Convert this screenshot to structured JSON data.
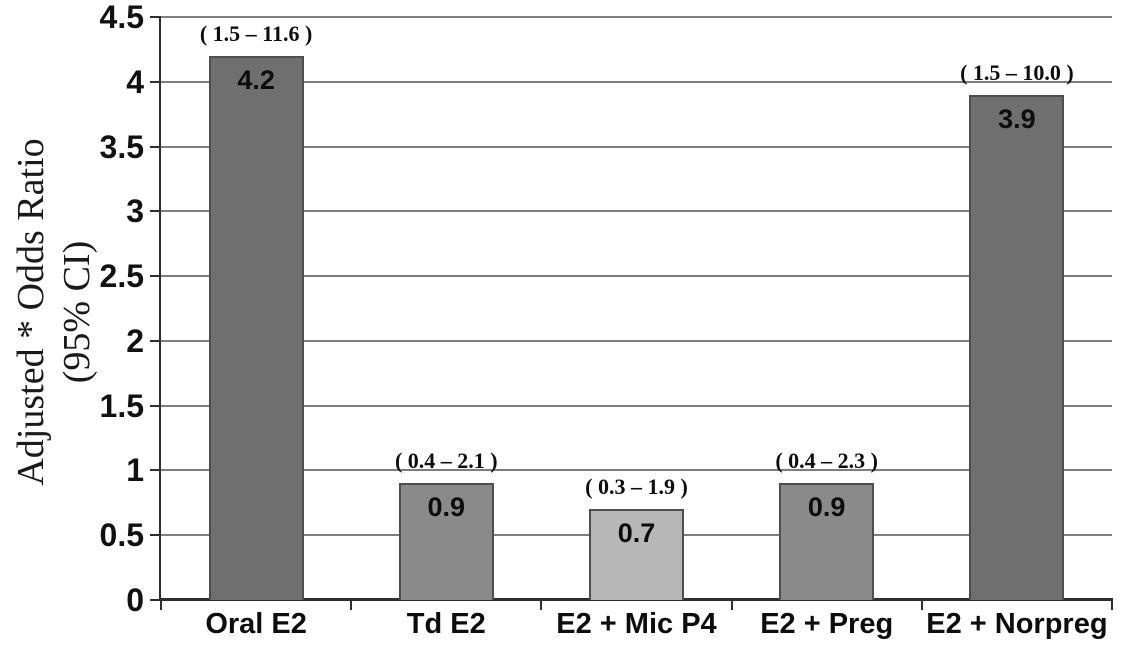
{
  "chart_data": {
    "type": "bar",
    "title": "",
    "categories": [
      "Oral E2",
      "Td E2",
      "E2 + Mic P4",
      "E2 + Preg",
      "E2 + Norpreg"
    ],
    "values": [
      4.2,
      0.9,
      0.7,
      0.9,
      3.9
    ],
    "value_labels": [
      "4.2",
      "0.9",
      "0.7",
      "0.9",
      "3.9"
    ],
    "ci_labels": [
      "( 1.5 – 11.6 )",
      "( 0.4 – 2.1 )",
      "( 0.3 – 1.9 )",
      "( 0.4 – 2.3 )",
      "( 1.5 – 10.0 )"
    ],
    "bar_colors": [
      "#6f6f6f",
      "#8a8a8a",
      "#b7b7b7",
      "#8a8a8a",
      "#6f6f6f"
    ],
    "xlabel": "",
    "ylabel": "Adjusted * Odds Ratio (95% CI)",
    "ylabel_line1": "Adjusted * Odds Ratio",
    "ylabel_line2": "(95% CI)",
    "ylim": [
      0,
      4.5
    ],
    "ytick_step": 0.5,
    "ytick_labels": [
      "0",
      "0.5",
      "1",
      "1.5",
      "2",
      "2.5",
      "3",
      "3.5",
      "4",
      "4.5"
    ],
    "grid": "horizontal",
    "legend": "none",
    "colors": {
      "gridline": "#7d7d7d",
      "axis": "#2f2f2f",
      "bar_border": "#4e4e4e",
      "text": "#0d0d0d",
      "background": "#ffffff"
    }
  }
}
